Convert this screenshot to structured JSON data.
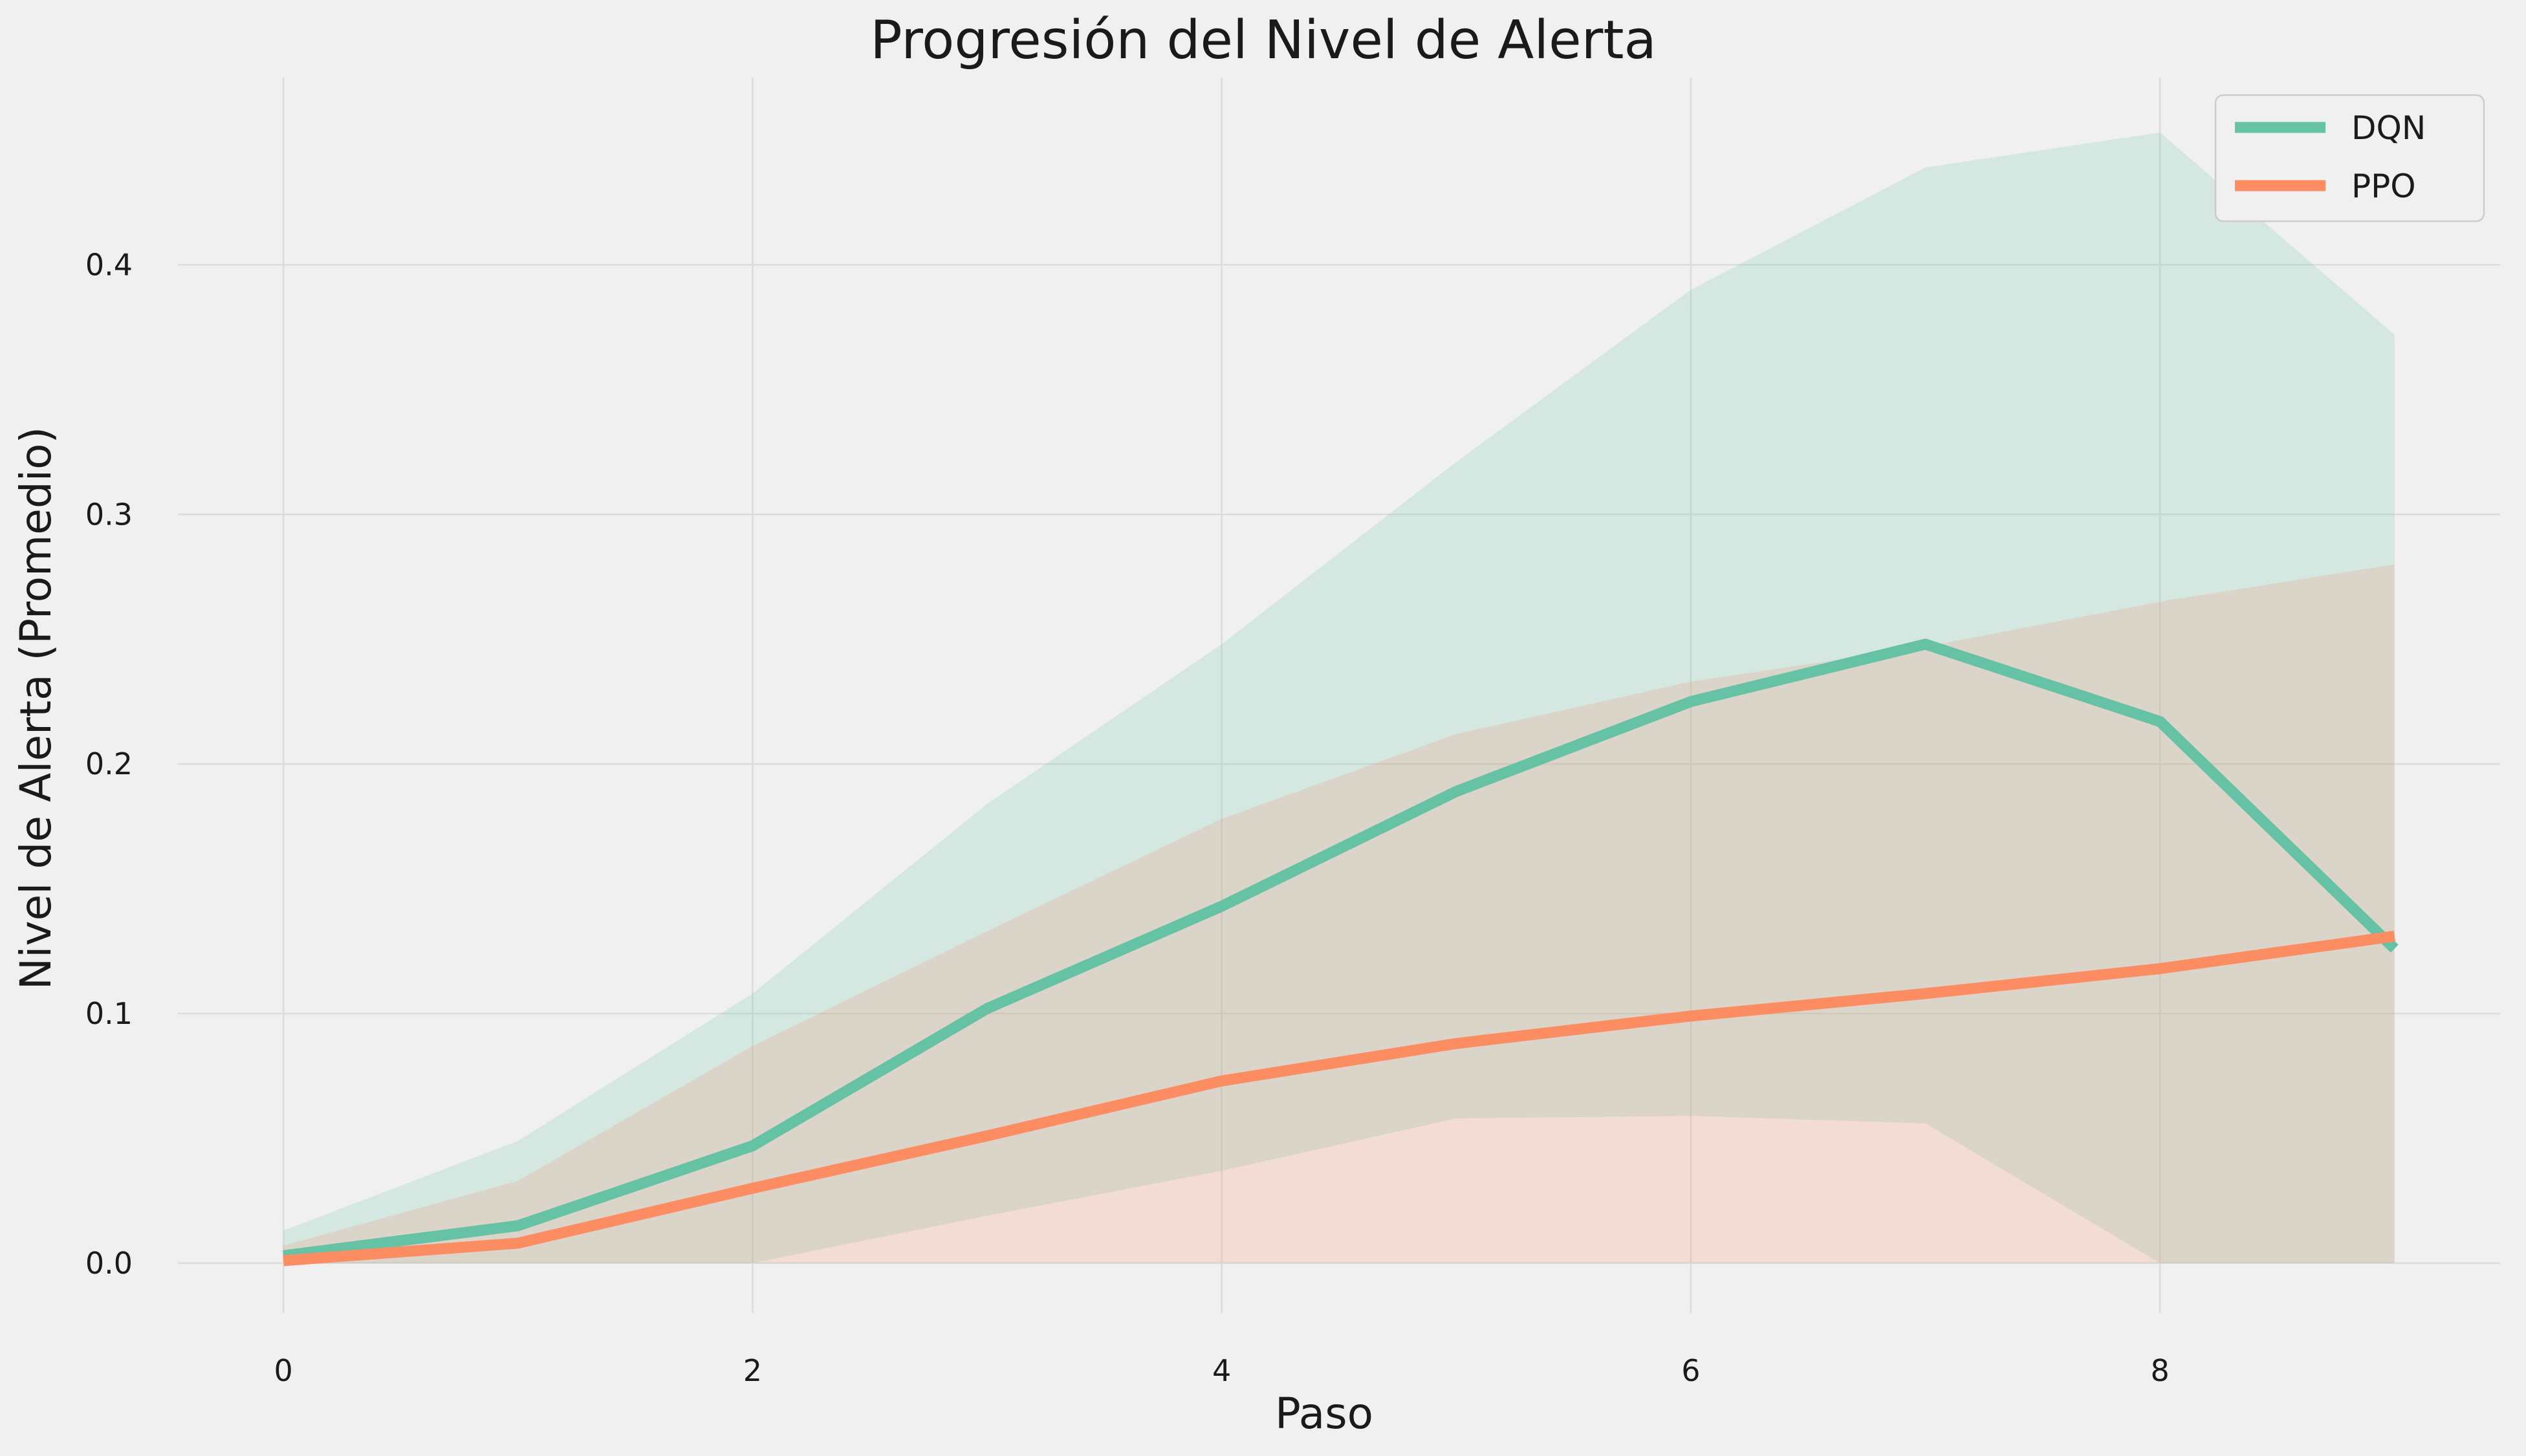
{
  "chart_data": {
    "type": "line",
    "title": "Progresión del Nivel de Alerta",
    "xlabel": "Paso",
    "ylabel": "Nivel de Alerta (Promedio)",
    "x": [
      0,
      1,
      2,
      3,
      4,
      5,
      6,
      7,
      8,
      9
    ],
    "xlim": [
      -0.45,
      9.45
    ],
    "ylim": [
      -0.02,
      0.475
    ],
    "xticks": [
      0,
      2,
      4,
      6,
      8
    ],
    "xtick_labels": [
      "0",
      "2",
      "4",
      "6",
      "8"
    ],
    "yticks": [
      0.0,
      0.1,
      0.2,
      0.3,
      0.4
    ],
    "ytick_labels": [
      "0.0",
      "0.1",
      "0.2",
      "0.3",
      "0.4"
    ],
    "grid": true,
    "legend_position": "top-right",
    "series": [
      {
        "name": "DQN",
        "color": "#66c2a5",
        "values": [
          0.003,
          0.015,
          0.047,
          0.102,
          0.143,
          0.189,
          0.225,
          0.248,
          0.217,
          0.126
        ],
        "band_upper": [
          0.013,
          0.049,
          0.108,
          0.184,
          0.248,
          0.321,
          0.39,
          0.439,
          0.453,
          0.372
        ],
        "band_lower": [
          0.0,
          0.0,
          0.0,
          0.019,
          0.037,
          0.058,
          0.059,
          0.056,
          0.0,
          0.0
        ]
      },
      {
        "name": "PPO",
        "color": "#fc8d62",
        "values": [
          0.001,
          0.008,
          0.03,
          0.051,
          0.073,
          0.088,
          0.099,
          0.108,
          0.118,
          0.131
        ],
        "band_upper": [
          0.007,
          0.033,
          0.087,
          0.133,
          0.178,
          0.212,
          0.233,
          0.247,
          0.265,
          0.28
        ],
        "band_lower": [
          0.0,
          0.0,
          0.0,
          0.0,
          0.0,
          0.0,
          0.0,
          0.0,
          0.0,
          0.0
        ]
      }
    ]
  }
}
